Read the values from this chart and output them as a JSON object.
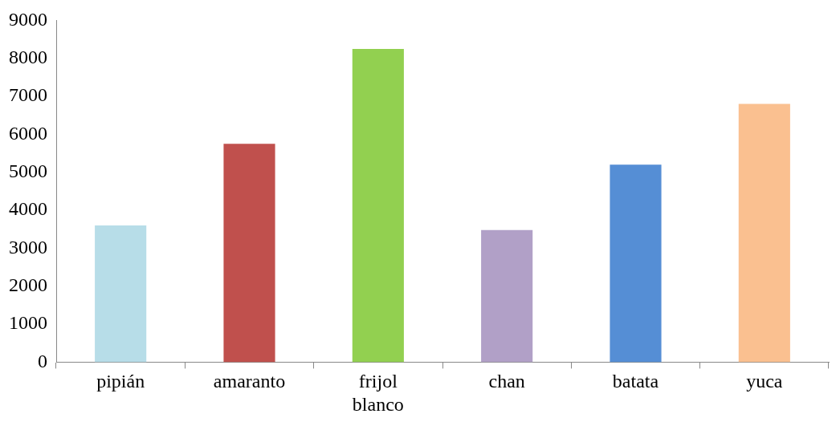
{
  "chart_data": {
    "type": "bar",
    "categories": [
      "pipián",
      "amaranto",
      "frijol blanco",
      "chan",
      "batata",
      "yuca"
    ],
    "values": [
      3600,
      5750,
      8250,
      3480,
      5200,
      6800
    ],
    "colors": [
      "#b7dde8",
      "#c0504d",
      "#92d050",
      "#b1a0c7",
      "#558ed5",
      "#fac090"
    ],
    "ylim": [
      0,
      9000
    ],
    "yticks": [
      0,
      1000,
      2000,
      3000,
      4000,
      5000,
      6000,
      7000,
      8000,
      9000
    ],
    "grid": false,
    "legend": false
  }
}
